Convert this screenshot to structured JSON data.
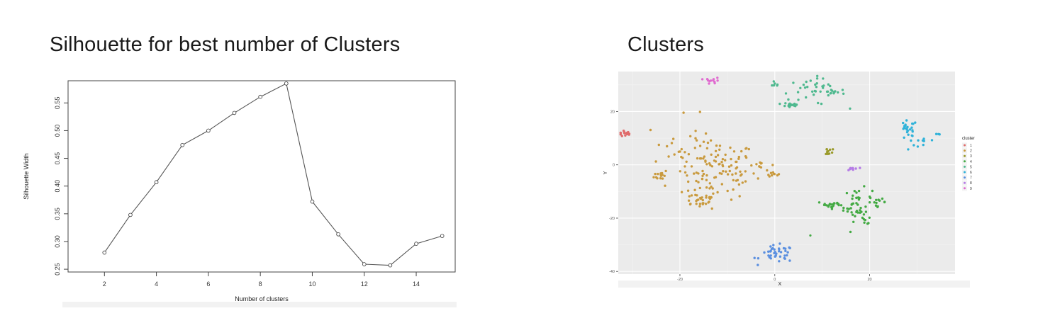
{
  "titles": {
    "left": "Silhouette for best number of Clusters",
    "right": "Clusters"
  },
  "chart_data": [
    {
      "type": "line",
      "title": "",
      "xlabel": "Number of clusters",
      "ylabel": "Silhouette Width",
      "x": [
        2,
        3,
        4,
        5,
        6,
        7,
        8,
        9,
        10,
        11,
        12,
        13,
        14,
        15
      ],
      "series": [
        {
          "values": [
            0.28,
            0.348,
            0.407,
            0.474,
            0.5,
            0.532,
            0.561,
            0.585,
            0.372,
            0.313,
            0.259,
            0.257,
            0.296,
            0.31
          ]
        }
      ],
      "xlim": [
        0.6,
        15.5
      ],
      "ylim": [
        0.245,
        0.59
      ],
      "xticks": [
        "2",
        "4",
        "6",
        "8",
        "10",
        "12",
        "14"
      ],
      "yticks": [
        "0.25",
        "0.30",
        "0.35",
        "0.40",
        "0.45",
        "0.50",
        "0.55"
      ],
      "grid": false,
      "marker": "open-circle",
      "line_color": "#555555"
    },
    {
      "type": "scatter",
      "title": "",
      "xlabel": "X",
      "ylabel": "Y",
      "xlim": [
        -33,
        38
      ],
      "ylim": [
        -41,
        35
      ],
      "xticks": [
        "-20",
        "0",
        "20"
      ],
      "yticks": [
        "-40",
        "-20",
        "0",
        "20"
      ],
      "grid": true,
      "background": "#ebebeb",
      "legend": {
        "title": "cluster",
        "placement": "right",
        "entries": [
          "1",
          "2",
          "3",
          "4",
          "5",
          "6",
          "7",
          "8",
          "9"
        ]
      },
      "series": [
        {
          "name": "1",
          "color": "#e06b6b",
          "clusters": [
            {
              "cx": -31.5,
              "cy": 11.8,
              "sx": 0.9,
              "sy": 0.7,
              "n": 14
            }
          ]
        },
        {
          "name": "2",
          "color": "#c99a3e",
          "clusters": [
            {
              "cx": -12,
              "cy": -2,
              "sx": 4.0,
              "sy": 5.5,
              "n": 110
            },
            {
              "cx": -16,
              "cy": -13,
              "sx": 2.0,
              "sy": 1.5,
              "n": 30
            },
            {
              "cx": -24,
              "cy": -3.8,
              "sx": 0.7,
              "sy": 1.0,
              "n": 14
            },
            {
              "cx": -3,
              "cy": 0,
              "sx": 1.5,
              "sy": 1.0,
              "n": 10
            },
            {
              "cx": -0.5,
              "cy": -3.3,
              "sx": 0.6,
              "sy": 0.5,
              "n": 9
            },
            {
              "cx": -19,
              "cy": 6,
              "sx": 4.0,
              "sy": 6.0,
              "n": 22
            }
          ]
        },
        {
          "name": "3",
          "color": "#9a9a2a",
          "clusters": [
            {
              "cx": 11,
              "cy": 5,
              "sx": 0.6,
              "sy": 1.0,
              "n": 10
            }
          ]
        },
        {
          "name": "4",
          "color": "#44aa44",
          "clusters": [
            {
              "cx": 17.5,
              "cy": -15,
              "sx": 1.5,
              "sy": 3.0,
              "n": 45
            },
            {
              "cx": 12,
              "cy": -15,
              "sx": 1.5,
              "sy": 0.7,
              "n": 20
            },
            {
              "cx": 22,
              "cy": -14,
              "sx": 0.7,
              "sy": 0.6,
              "n": 10
            },
            {
              "cx": 19,
              "cy": -21,
              "sx": 0.8,
              "sy": 0.6,
              "n": 6
            }
          ]
        },
        {
          "name": "5",
          "color": "#4fb98f",
          "clusters": [
            {
              "cx": 8,
              "cy": 27.5,
              "sx": 3.5,
              "sy": 2.5,
              "n": 38
            },
            {
              "cx": 3.5,
              "cy": 22.5,
              "sx": 0.9,
              "sy": 0.7,
              "n": 18
            },
            {
              "cx": 12.5,
              "cy": 27.5,
              "sx": 0.7,
              "sy": 0.6,
              "n": 10
            },
            {
              "cx": 0,
              "cy": 30,
              "sx": 0.5,
              "sy": 0.4,
              "n": 6
            }
          ]
        },
        {
          "name": "6",
          "color": "#2fb2d9",
          "clusters": [
            {
              "cx": 28,
              "cy": 13.5,
              "sx": 1.0,
              "sy": 1.5,
              "n": 22
            },
            {
              "cx": 30,
              "cy": 8,
              "sx": 2.0,
              "sy": 1.5,
              "n": 12
            },
            {
              "cx": 34.5,
              "cy": 11.5,
              "sx": 0.3,
              "sy": 0.3,
              "n": 3
            }
          ]
        },
        {
          "name": "7",
          "color": "#5a8fe0",
          "clusters": [
            {
              "cx": 0.5,
              "cy": -33.5,
              "sx": 1.8,
              "sy": 1.6,
              "n": 40
            }
          ]
        },
        {
          "name": "8",
          "color": "#b57be6",
          "clusters": [
            {
              "cx": 16.5,
              "cy": -1.5,
              "sx": 0.6,
              "sy": 0.5,
              "n": 10
            }
          ]
        },
        {
          "name": "9",
          "color": "#e06bd0",
          "clusters": [
            {
              "cx": -13,
              "cy": 31.5,
              "sx": 0.8,
              "sy": 0.6,
              "n": 12
            }
          ]
        }
      ]
    }
  ]
}
